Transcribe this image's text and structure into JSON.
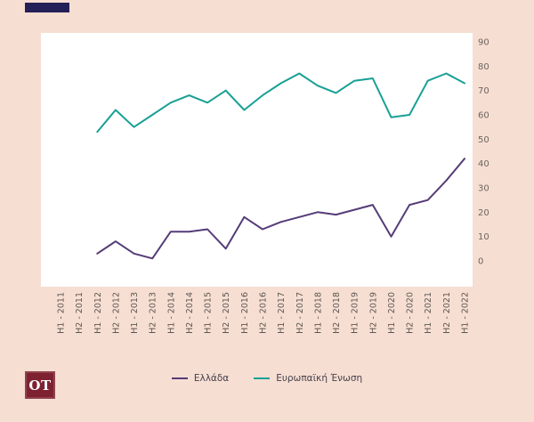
{
  "page": {
    "background": "#f7ded3"
  },
  "header": {
    "accent_bar_color": "#232057"
  },
  "logo": {
    "text": "OT",
    "background": "#7e2231",
    "color": "#ffffff"
  },
  "legend": [
    {
      "label": "Ελλάδα",
      "color": "#553c78"
    },
    {
      "label": "Ευρωπαϊκή Ένωση",
      "color": "#17a095"
    }
  ],
  "chart_data": {
    "type": "line",
    "title": "",
    "xlabel": "",
    "ylabel": "",
    "grid": false,
    "legend_position": "bottom",
    "y_axis": {
      "min": 0,
      "max": 90,
      "step": 10,
      "position": "right"
    },
    "categories": [
      "H1 - 2011",
      "H2 - 2011",
      "H1 - 2012",
      "H2 - 2012",
      "H1 - 2013",
      "H2 - 2013",
      "H1 - 2014",
      "H2 - 2014",
      "H1 - 2015",
      "H2 - 2015",
      "H1 - 2016",
      "H2 - 2016",
      "H1 - 2017",
      "H2 - 2017",
      "H1 - 2018",
      "H2 - 2018",
      "H1 - 2019",
      "H2 - 2019",
      "H1 - 2020",
      "H2 - 2020",
      "H1 - 2021",
      "H2 - 2021",
      "H1 - 2022"
    ],
    "series": [
      {
        "name": "Ελλάδα",
        "color": "#553c78",
        "values": [
          null,
          null,
          3,
          8,
          3,
          1,
          12,
          12,
          13,
          5,
          18,
          13,
          16,
          18,
          20,
          19,
          21,
          23,
          10,
          23,
          25,
          33,
          42
        ]
      },
      {
        "name": "Ευρωπαϊκή Ένωση",
        "color": "#17a095",
        "values": [
          null,
          null,
          53,
          62,
          55,
          60,
          65,
          68,
          65,
          70,
          62,
          68,
          73,
          77,
          72,
          69,
          74,
          75,
          59,
          60,
          74,
          77,
          73
        ]
      }
    ]
  }
}
